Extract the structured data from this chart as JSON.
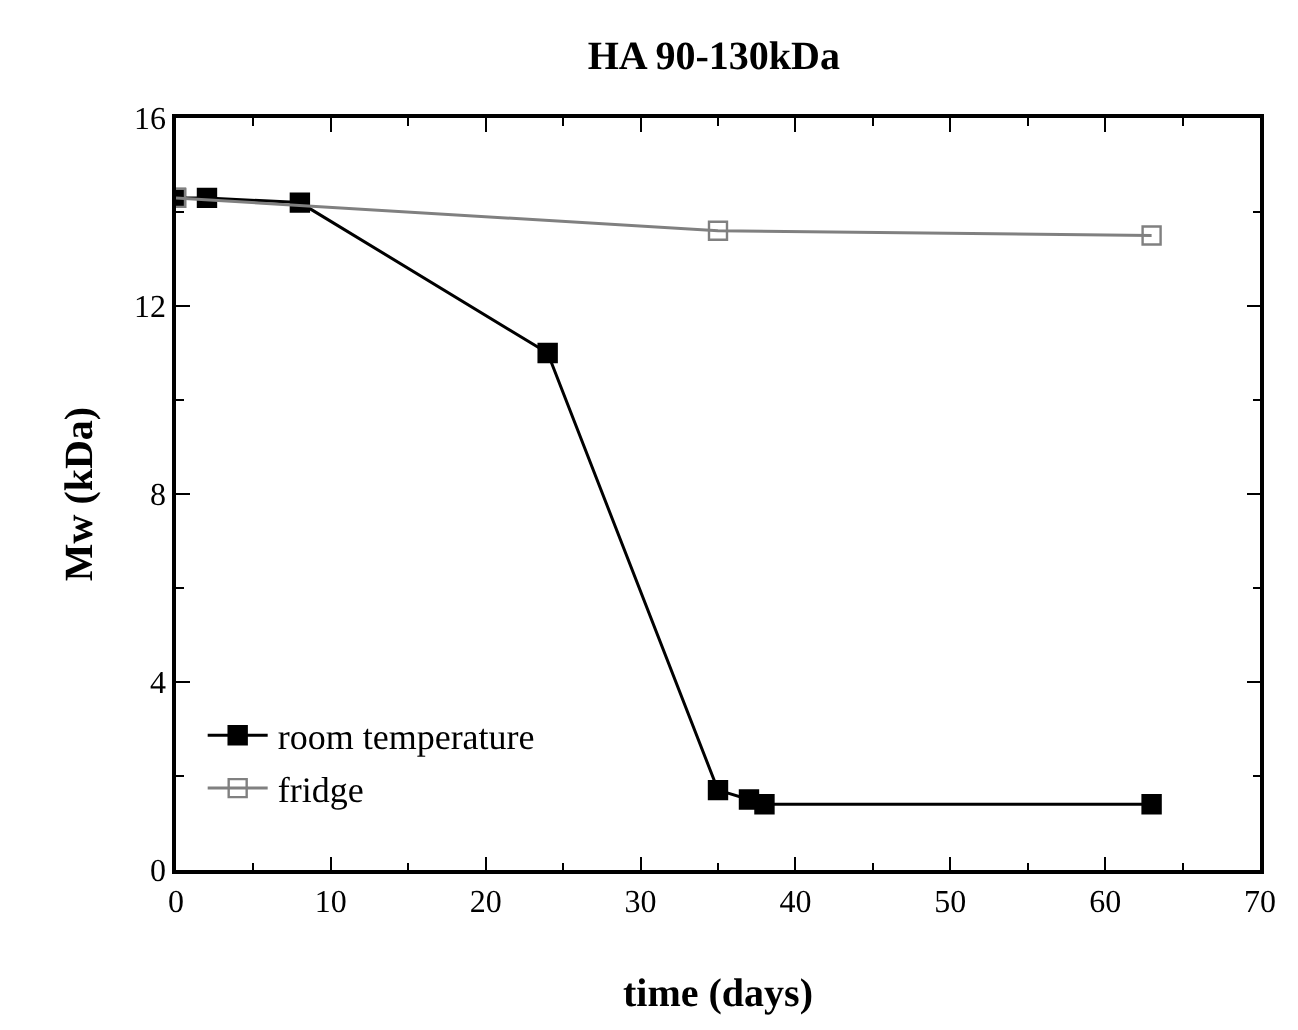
{
  "chart_data": {
    "type": "line",
    "title": "HA 90-130kDa",
    "xlabel": "time (days)",
    "ylabel": "Mw (kDa)",
    "xlim": [
      0,
      70
    ],
    "xticks": [
      0,
      10,
      20,
      30,
      40,
      50,
      60,
      70
    ],
    "ylim": [
      0,
      16
    ],
    "yticks": [
      0,
      4,
      8,
      12,
      16
    ],
    "legend": "bottom left",
    "marker": "square",
    "line_style": "solid",
    "series": [
      {
        "name": "room temperature",
        "color": "#000000",
        "x": [
          0,
          2,
          8,
          24,
          35,
          37,
          38,
          63
        ],
        "values": [
          14.3,
          14.3,
          14.2,
          11.0,
          1.7,
          1.5,
          1.4,
          1.4
        ]
      },
      {
        "name": "fridge",
        "color": "#808080",
        "x": [
          0,
          35,
          63
        ],
        "values": [
          14.3,
          13.6,
          13.5
        ]
      }
    ]
  }
}
